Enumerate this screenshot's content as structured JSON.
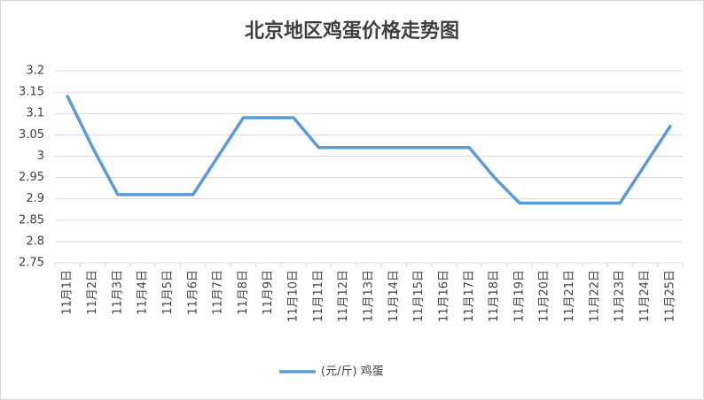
{
  "chart_data": {
    "type": "line",
    "title": "北京地区鸡蛋价格走势图",
    "categories": [
      "11月1日",
      "11月2日",
      "11月3日",
      "11月4日",
      "11月5日",
      "11月6日",
      "11月7日",
      "11月8日",
      "11月9日",
      "11月10日",
      "11月11日",
      "11月12日",
      "11月13日",
      "11月14日",
      "11月15日",
      "11月16日",
      "11月17日",
      "11月18日",
      "11月19日",
      "11月20日",
      "11月21日",
      "11月22日",
      "11月23日",
      "11月24日",
      "11月25日"
    ],
    "series": [
      {
        "name": "(元/斤) 鸡蛋",
        "color": "#5b9bd5",
        "values": [
          3.14,
          3.02,
          2.91,
          2.91,
          2.91,
          2.91,
          3.0,
          3.09,
          3.09,
          3.09,
          3.02,
          3.02,
          3.02,
          3.02,
          3.02,
          3.02,
          3.02,
          2.95,
          2.89,
          2.89,
          2.89,
          2.89,
          2.89,
          2.98,
          3.07
        ]
      }
    ],
    "ylim": [
      2.75,
      3.2
    ],
    "yticks": [
      2.75,
      2.8,
      2.85,
      2.9,
      2.95,
      3,
      3.05,
      3.1,
      3.15,
      3.2
    ],
    "grid": true
  }
}
